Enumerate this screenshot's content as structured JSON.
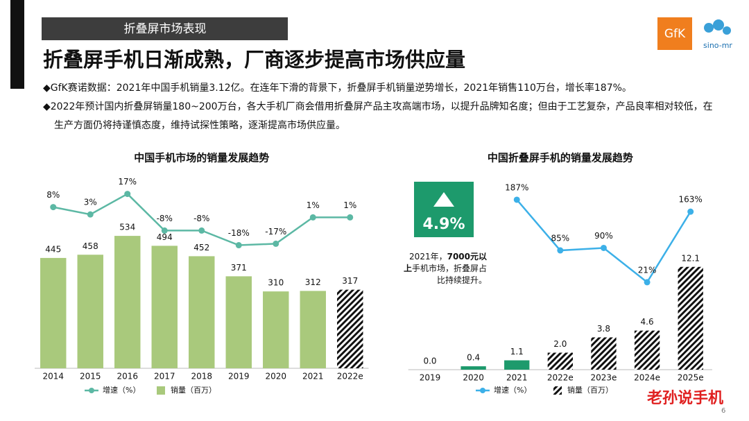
{
  "header": {
    "tag": "折叠屏市场表现",
    "title": "折叠屏手机日渐成熟，厂商逐步提高市场供应量",
    "bullets": [
      "◆GfK赛诺数据：2021年中国手机销量3.12亿。在连年下滑的背景下，折叠屏手机销量逆势增长，2021年销售110万台，增长率187%。",
      "◆2022年预计国内折叠屏销量180~200万台，各大手机厂商会借用折叠屏产品主攻高端市场，以提升品牌知名度；但由于工艺复杂，产品良率相对较低，在生产方面仍将持谨慎态度，维持试探性策略，逐渐提高市场供应量。"
    ]
  },
  "logos": {
    "gfk": "GfK",
    "sino": "sino-mr"
  },
  "chart_data": [
    {
      "type": "combo",
      "title": "中国手机市场的销量发展趋势",
      "categories": [
        "2014",
        "2015",
        "2016",
        "2017",
        "2018",
        "2019",
        "2020",
        "2021",
        "2022e"
      ],
      "series": [
        {
          "name": "销量（百万）",
          "type": "bar",
          "color": "#a9c97c",
          "values": [
            445,
            458,
            534,
            494,
            452,
            371,
            310,
            312,
            317
          ]
        },
        {
          "name": "增速（%）",
          "type": "line",
          "axis": "y2",
          "color": "#5cb8a4",
          "values": [
            8,
            3,
            17,
            -8,
            -8,
            -18,
            -17,
            1,
            1
          ],
          "value_labels": [
            "8%",
            "3%",
            "17%",
            "-8%",
            "-8%",
            "-18%",
            "-17%",
            "1%",
            "1%"
          ]
        }
      ],
      "ylim": [
        0,
        786
      ],
      "y2lim": [
        -102,
        31
      ]
    },
    {
      "type": "combo",
      "title": "中国折叠屏手机的销量发展趋势",
      "categories": [
        "2019",
        "2020",
        "2021",
        "2022e",
        "2023e",
        "2024e",
        "2025e"
      ],
      "series": [
        {
          "name": "销量（百万）",
          "type": "bar",
          "color": "#1d9a6c",
          "values": [
            0.0,
            0.4,
            1.1,
            2.0,
            3.8,
            4.6,
            12.1
          ],
          "value_labels": [
            "0.0",
            "0.4",
            "1.1",
            "2.0",
            "3.8",
            "4.6",
            "12.1"
          ]
        },
        {
          "name": "增速（%）",
          "type": "line",
          "axis": "y2",
          "color": "#3cb0e8",
          "values": [
            null,
            null,
            187,
            85,
            90,
            21,
            163
          ],
          "value_labels": [
            null,
            null,
            "187%",
            "85%",
            "90%",
            "21%",
            "163%"
          ]
        }
      ],
      "ylim": [
        0,
        23.1
      ],
      "y2lim": [
        -155,
        240
      ],
      "legend_hatched": true
    }
  ],
  "callout": {
    "value": "4.9%",
    "parts": [
      "2021年，",
      "7000元以上",
      "手机市场，折叠屏占比持续提升。"
    ]
  },
  "watermark": "老孙说手机",
  "page_number": "6"
}
